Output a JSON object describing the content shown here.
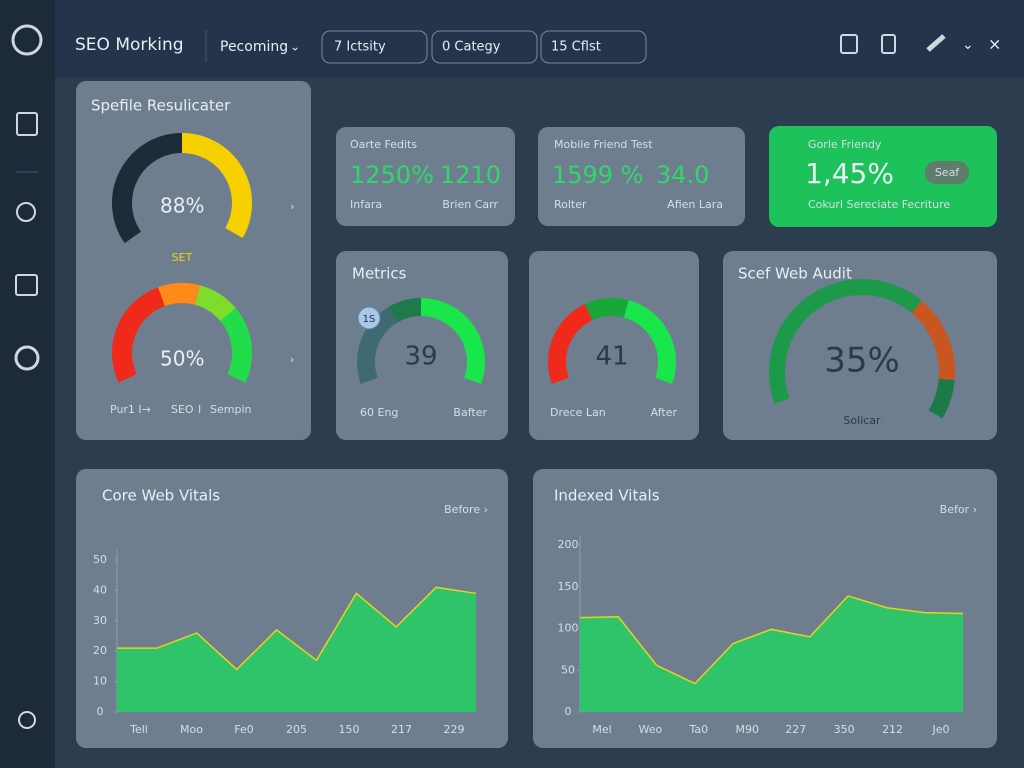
{
  "header": {
    "title": "SEO Morking",
    "dropdown": "Pecoming",
    "filters": [
      "7 Ictsity",
      "0 Categy",
      "15 Cflst"
    ]
  },
  "score_panel": {
    "title": "Spefile Resulicater",
    "gauge_top": "88%",
    "gauge_top_caption": "SET",
    "gauge_bottom": "50%",
    "footer": [
      "Pur1 I→",
      "SEO",
      "I",
      "Sempin"
    ]
  },
  "cards": [
    {
      "title": "Oarte Fedits",
      "value_a": "1250%",
      "value_b": "1210",
      "label_a": "Infara",
      "label_b": "Brien Carr"
    },
    {
      "title": "Mobile Friend Test",
      "value_a": "1599 %",
      "value_b": "34.0",
      "label_a": "Rolter",
      "label_b": "Afien Lara"
    },
    {
      "title": "Gorle Friendy",
      "value_a": "1,45%",
      "badge": "Seaf",
      "label_a": "Cokurl Sereciate Fecriture"
    }
  ],
  "metrics": {
    "title": "Metrics",
    "badge": "1S",
    "gauge_a": "39",
    "gauge_a_left": "60 Eng",
    "gauge_a_right": "Bafter",
    "gauge_b": "41",
    "gauge_b_left": "Drece Lan",
    "gauge_b_right": "After"
  },
  "audit": {
    "title": "Scef Web Audit",
    "value": "35%",
    "caption": "Solicar"
  },
  "charts": [
    {
      "title": "Core Web Vitals",
      "button": "Before ›",
      "ylim": [
        0,
        50
      ],
      "yticks": [
        0,
        10,
        20,
        30,
        40,
        50
      ],
      "xlabels": [
        "Tell",
        "Moo",
        "Fe0",
        "205",
        "150",
        "217",
        "229"
      ],
      "values": [
        21,
        21,
        26,
        14,
        27,
        17,
        39,
        28,
        41,
        39
      ]
    },
    {
      "title": "Indexed Vitals",
      "button": "Befor ›",
      "ylim": [
        0,
        200
      ],
      "yticks": [
        0,
        50,
        100,
        150,
        200
      ],
      "xlabels": [
        "Mel",
        "Weo",
        "Ta0",
        "M90",
        "227",
        "350",
        "212",
        "Je0"
      ],
      "values": [
        113,
        114,
        56,
        34,
        82,
        99,
        90,
        139,
        125,
        119,
        118
      ]
    }
  ]
}
